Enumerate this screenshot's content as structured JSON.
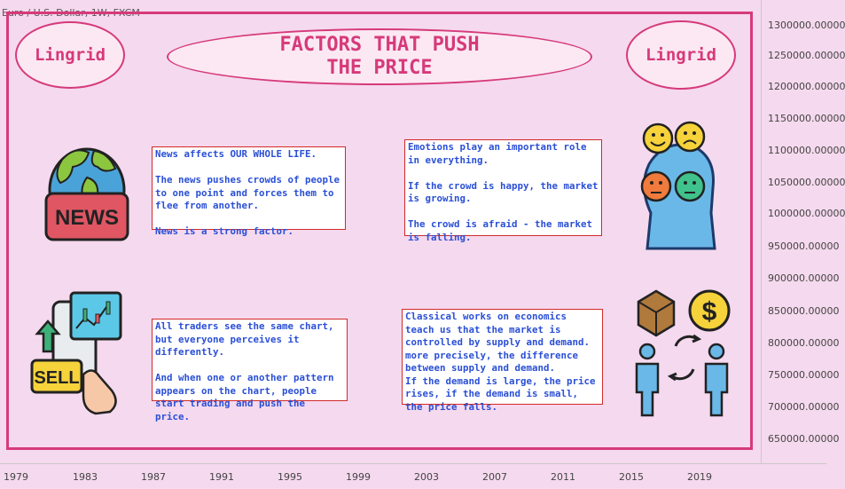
{
  "chart": {
    "symbol_title": "Euro / U.S. Dollar, 1W, FXCM"
  },
  "brand": {
    "left": "Lingrid",
    "right": "Lingrid"
  },
  "headline": {
    "line1": "FACTORS THAT PUSH",
    "line2": "THE PRICE"
  },
  "notes": {
    "news": {
      "p1": "News affects OUR WHOLE LIFE.",
      "p2": "The news pushes crowds of people to one point and forces them to flee from another.",
      "p3": "News is a strong factor."
    },
    "emotions": {
      "p1": "Emotions play an important role in everything.",
      "p2": "If the crowd is happy, the market is growing.",
      "p3": "The crowd is afraid - the market is falling."
    },
    "chart": {
      "p1": "All traders see the same chart, but everyone perceives it differently.",
      "p2": "And when one or another pattern appears on the chart, people start trading and push the price."
    },
    "economics": {
      "p1": "Classical works on economics teach us that the market is controlled by supply and demand.",
      "p2": "more precisely, the difference between supply and demand.",
      "p3": "If the demand is large, the price rises, if the demand is small, the price falls."
    }
  },
  "illustrations": {
    "news_badge": "NEWS",
    "sell_badge": "SELL",
    "currency_symbol": "$",
    "icons": [
      "globe-news-icon",
      "emotions-head-icon",
      "trading-phone-icon",
      "supply-demand-icon"
    ]
  },
  "y_axis": {
    "ticks": [
      "1300000.00000",
      "1250000.00000",
      "1200000.00000",
      "1150000.00000",
      "1100000.00000",
      "1050000.00000",
      "1000000.00000",
      "950000.00000",
      "900000.00000",
      "850000.00000",
      "800000.00000",
      "750000.00000",
      "700000.00000",
      "650000.00000"
    ]
  },
  "x_axis": {
    "ticks": [
      "1979",
      "1983",
      "1987",
      "1991",
      "1995",
      "1999",
      "2003",
      "2007",
      "2011",
      "2015",
      "2019"
    ]
  },
  "colors": {
    "background": "#f5d9ee",
    "accent": "#d63a7a",
    "note_text": "#2a4fd6",
    "note_border": "#d12a2a"
  }
}
